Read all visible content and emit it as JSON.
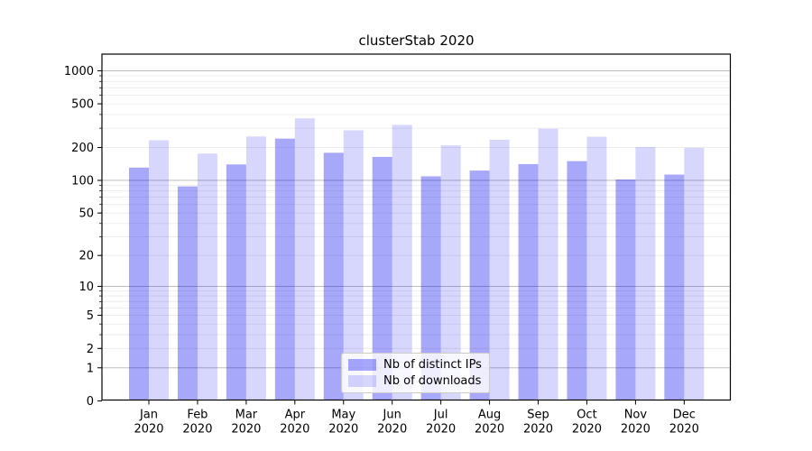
{
  "chart_data": {
    "type": "bar",
    "title": "clusterStab 2020",
    "xlabel": "",
    "ylabel": "",
    "categories": [
      "Jan 2020",
      "Feb 2020",
      "Mar 2020",
      "Apr 2020",
      "May 2020",
      "Jun 2020",
      "Jul 2020",
      "Aug 2020",
      "Sep 2020",
      "Oct 2020",
      "Nov 2020",
      "Dec 2020"
    ],
    "series": [
      {
        "name": "Nb of distinct IPs",
        "color": "rgba(0,0,240,0.34)",
        "color_hex": "#a8a8f8",
        "values": [
          131,
          88,
          140,
          241,
          179,
          164,
          109,
          123,
          141,
          150,
          102,
          113
        ]
      },
      {
        "name": "Nb of downloads",
        "color": "rgba(0,0,240,0.155)",
        "color_hex": "#d8d8fa",
        "values": [
          233,
          176,
          252,
          369,
          287,
          322,
          209,
          235,
          297,
          251,
          202,
          199
        ]
      }
    ],
    "yscale": "log10(value+1)",
    "yticks": [
      0,
      1,
      2,
      5,
      10,
      20,
      50,
      100,
      200,
      500,
      1000
    ],
    "ymajor_gridlines": [
      1,
      10,
      100,
      1000
    ],
    "ylim": [
      0,
      1400
    ],
    "grid": true,
    "legend_position": "lower center",
    "colors": {
      "major_grid": "#b3b3b3",
      "minor_grid": "#eaeaea",
      "axis": "#000000",
      "legend_border": "#cccccc",
      "legend_bg": "rgba(255,255,255,0.8)"
    }
  }
}
